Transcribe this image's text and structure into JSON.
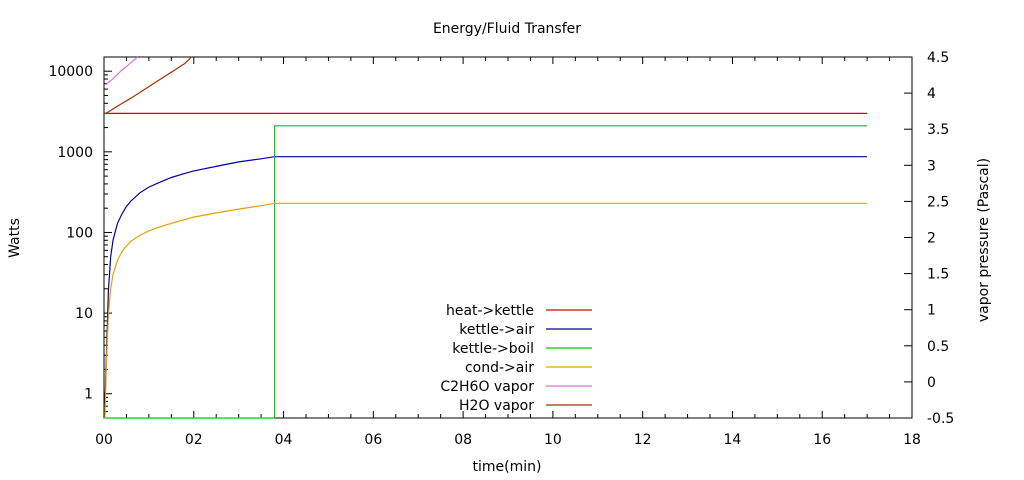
{
  "chart_data": {
    "type": "line",
    "title": "Energy/Fluid Transfer",
    "xlabel": "time(min)",
    "ylabel": "Watts",
    "y2label": "vapor pressure (Pascal)",
    "xlim": [
      0,
      18
    ],
    "ylim_log": [
      0.5,
      15000
    ],
    "y2lim": [
      -0.5,
      4.5
    ],
    "yscale": "log",
    "grid": false,
    "legend_position": "bottom-center",
    "x_ticks": [
      "00",
      "02",
      "04",
      "06",
      "08",
      "10",
      "12",
      "14",
      "16",
      "18"
    ],
    "y_ticks": [
      "1",
      "10",
      "100",
      "1000",
      "10000"
    ],
    "y2_ticks": [
      "-0.5",
      "0",
      "0.5",
      "1",
      "1.5",
      "2",
      "2.5",
      "3",
      "3.5",
      "4",
      "4.5"
    ],
    "series": [
      {
        "name": "heat->kettle",
        "color": "#dd0000",
        "axis": "y",
        "x": [
          0,
          17.0
        ],
        "y": [
          3000,
          3000
        ]
      },
      {
        "name": "kettle->air",
        "color": "#0000aa",
        "axis": "y",
        "x": [
          0.02,
          0.06,
          0.1,
          0.15,
          0.2,
          0.3,
          0.4,
          0.5,
          0.6,
          0.8,
          1.0,
          1.2,
          1.5,
          1.8,
          2.0,
          2.5,
          3.0,
          3.5,
          3.8,
          5.0,
          8.0,
          10.0,
          14.0,
          17.0
        ],
        "y": [
          0.7,
          4,
          20,
          50,
          80,
          130,
          170,
          210,
          245,
          310,
          365,
          410,
          480,
          540,
          580,
          660,
          750,
          820,
          870,
          870,
          870,
          870,
          870,
          870
        ]
      },
      {
        "name": "kettle->boil",
        "color": "#00cc00",
        "axis": "y",
        "x": [
          0,
          3.8,
          3.8,
          17.0
        ],
        "y": [
          0.5,
          0.5,
          2100,
          2100
        ]
      },
      {
        "name": "cond->air",
        "color": "#e8a000",
        "axis": "y",
        "x": [
          0.02,
          0.06,
          0.1,
          0.15,
          0.2,
          0.3,
          0.4,
          0.5,
          0.6,
          0.8,
          1.0,
          1.2,
          1.5,
          1.8,
          2.0,
          2.5,
          3.0,
          3.5,
          3.8,
          5.0,
          8.0,
          10.0,
          14.0,
          17.0
        ],
        "y": [
          0.5,
          3,
          10,
          20,
          30,
          45,
          58,
          68,
          78,
          92,
          105,
          115,
          130,
          145,
          155,
          175,
          195,
          215,
          230,
          230,
          230,
          230,
          230,
          230
        ]
      },
      {
        "name": "C2H6O vapor",
        "color": "#e070e0",
        "axis": "y2",
        "x": [
          0.05,
          0.2,
          0.4,
          0.6,
          0.75
        ],
        "y": [
          4.12,
          4.2,
          4.32,
          4.42,
          4.5
        ]
      },
      {
        "name": "H2O vapor",
        "color": "#a03000",
        "axis": "y2",
        "x": [
          0.05,
          0.3,
          0.6,
          0.9,
          1.2,
          1.5,
          1.8,
          1.95
        ],
        "y": [
          3.72,
          3.82,
          3.93,
          4.05,
          4.17,
          4.29,
          4.41,
          4.5
        ]
      }
    ]
  }
}
